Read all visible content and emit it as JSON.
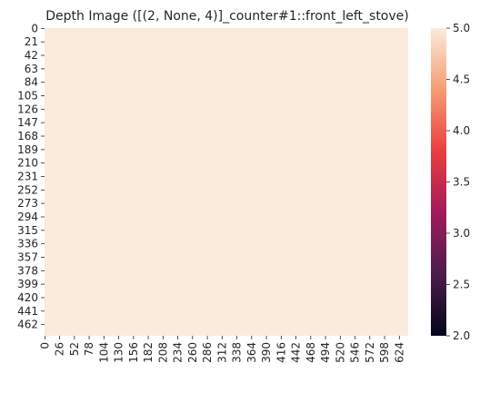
{
  "chart_data": {
    "type": "heatmap",
    "title": "Depth Image ([(2, None, 4)]_counter#1::front_left_stove)",
    "xlabel": "",
    "ylabel": "",
    "x_tick_labels": [
      "0",
      "26",
      "52",
      "78",
      "104",
      "130",
      "156",
      "182",
      "208",
      "234",
      "260",
      "286",
      "312",
      "338",
      "364",
      "390",
      "416",
      "442",
      "468",
      "494",
      "520",
      "546",
      "572",
      "598",
      "624"
    ],
    "y_tick_labels": [
      "0",
      "21",
      "42",
      "63",
      "84",
      "105",
      "126",
      "147",
      "168",
      "189",
      "210",
      "231",
      "252",
      "273",
      "294",
      "315",
      "336",
      "357",
      "378",
      "399",
      "420",
      "441",
      "462"
    ],
    "x_range": [
      0,
      640
    ],
    "y_range": [
      0,
      480
    ],
    "value": 5.0,
    "colorbar": {
      "min": 2.0,
      "max": 5.0,
      "tick_values": [
        2.0,
        2.5,
        3.0,
        3.5,
        4.0,
        4.5,
        5.0
      ],
      "tick_labels": [
        "2.0",
        "2.5",
        "3.0",
        "3.5",
        "4.0",
        "4.5",
        "5.0"
      ],
      "colormap": "rocket",
      "colors": [
        "#03051a",
        "#4c1d4b",
        "#a11a5b",
        "#e83f3f",
        "#f69c73",
        "#faebdd"
      ]
    },
    "grid": false
  }
}
